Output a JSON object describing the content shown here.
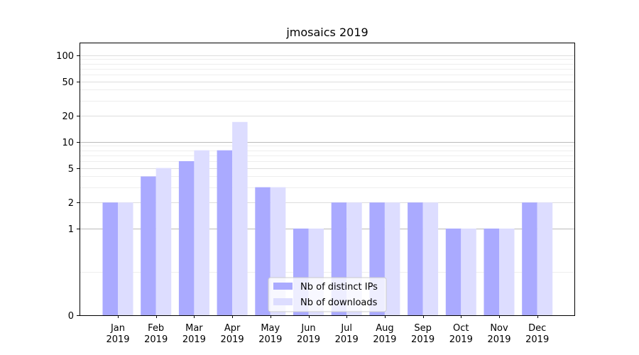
{
  "chart_data": {
    "type": "bar",
    "title": "jmosaics 2019",
    "xlabel": "",
    "ylabel": "",
    "y_scale": "symlog",
    "ylim": [
      0,
      140
    ],
    "y_ticks": [
      0,
      1,
      2,
      5,
      10,
      20,
      50,
      100
    ],
    "categories": [
      "Jan\n2019",
      "Feb\n2019",
      "Mar\n2019",
      "Apr\n2019",
      "May\n2019",
      "Jun\n2019",
      "Jul\n2019",
      "Aug\n2019",
      "Sep\n2019",
      "Oct\n2019",
      "Nov\n2019",
      "Dec\n2019"
    ],
    "series": [
      {
        "name": "Nb of distinct IPs",
        "color": "#aaaaff",
        "values": [
          2,
          4,
          6,
          8,
          3,
          1,
          2,
          2,
          2,
          1,
          1,
          2
        ]
      },
      {
        "name": "Nb of downloads",
        "color": "#ddddff",
        "values": [
          2,
          5,
          8,
          17,
          3,
          1,
          2,
          2,
          2,
          1,
          1,
          2
        ]
      }
    ],
    "grid": true,
    "legend_position": "lower-center"
  }
}
